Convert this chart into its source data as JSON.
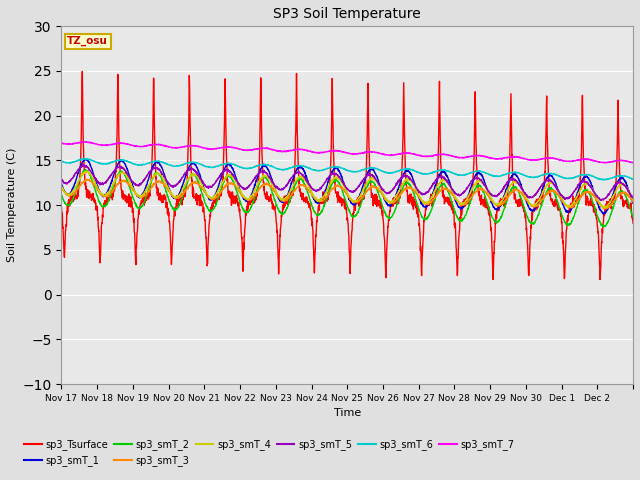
{
  "title": "SP3 Soil Temperature",
  "xlabel": "Time",
  "ylabel": "Soil Temperature (C)",
  "ylim": [
    -10,
    30
  ],
  "background_color": "#e8e8e8",
  "fig_facecolor": "#e0e0e0",
  "tz_label": "TZ_osu",
  "x_tick_labels": [
    "Nov 17",
    "Nov 18",
    "Nov 19",
    "Nov 20",
    "Nov 21",
    "Nov 22",
    "Nov 23",
    "Nov 24",
    "Nov 25",
    "Nov 26",
    "Nov 27",
    "Nov 28",
    "Nov 29",
    "Nov 30",
    "Dec 1",
    "Dec 2"
  ],
  "series": {
    "sp3_Tsurface": {
      "color": "#ff0000",
      "lw": 1.0
    },
    "sp3_smT_1": {
      "color": "#0000dd",
      "lw": 1.0
    },
    "sp3_smT_2": {
      "color": "#00cc00",
      "lw": 1.0
    },
    "sp3_smT_3": {
      "color": "#ff8800",
      "lw": 1.0
    },
    "sp3_smT_4": {
      "color": "#cccc00",
      "lw": 1.0
    },
    "sp3_smT_5": {
      "color": "#9900bb",
      "lw": 1.0
    },
    "sp3_smT_6": {
      "color": "#00cccc",
      "lw": 1.0
    },
    "sp3_smT_7": {
      "color": "#ff00ff",
      "lw": 1.0
    }
  },
  "legend_order": [
    "sp3_Tsurface",
    "sp3_smT_1",
    "sp3_smT_2",
    "sp3_smT_3",
    "sp3_smT_4",
    "sp3_smT_5",
    "sp3_smT_6",
    "sp3_smT_7"
  ]
}
